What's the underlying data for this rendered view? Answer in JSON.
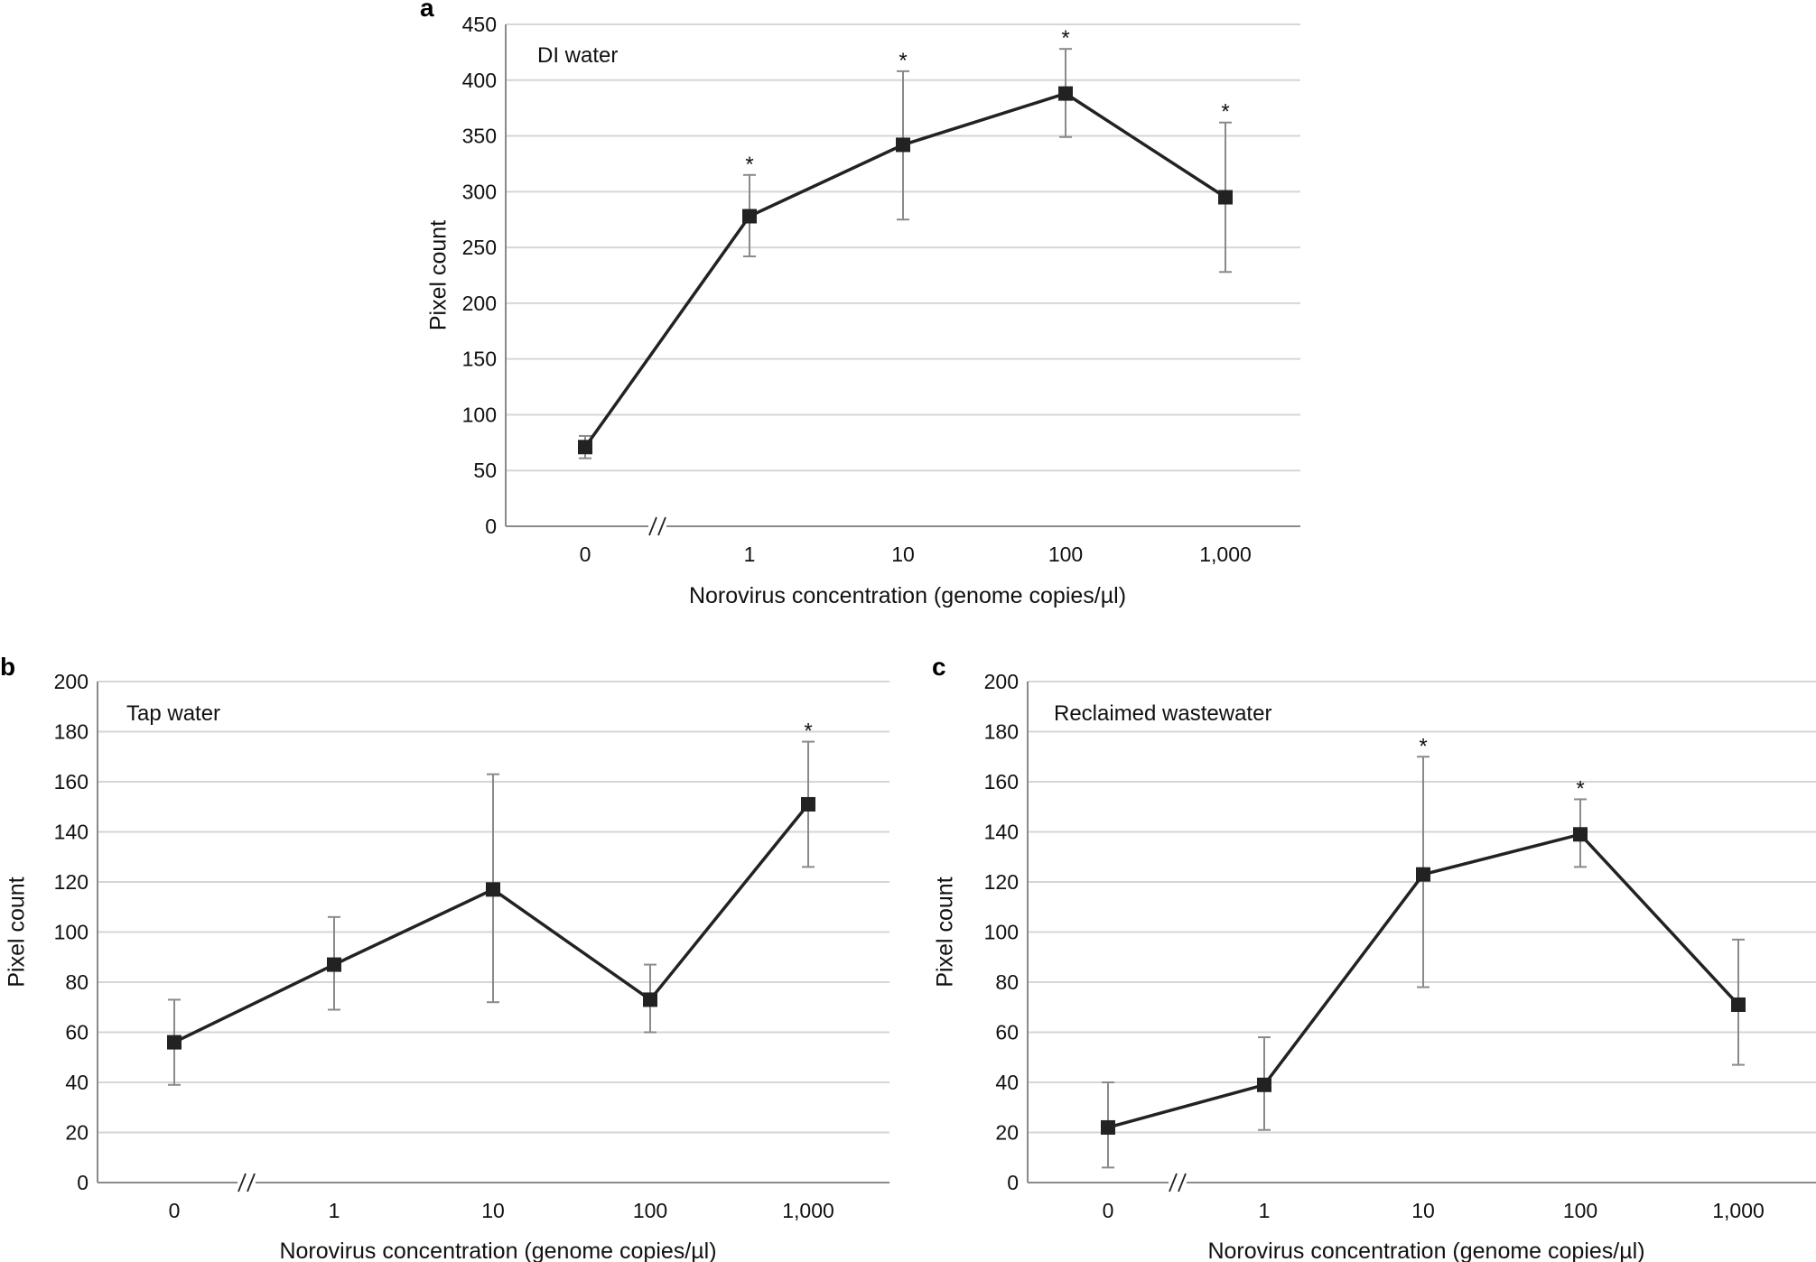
{
  "chart_data": [
    {
      "panel": "a",
      "type": "line",
      "inset_label": "DI water",
      "xlabel": "Norovirus concentration (genome copies/µl)",
      "ylabel": "Pixel count",
      "categories": [
        "0",
        "1",
        "10",
        "100",
        "1,000"
      ],
      "ylim": [
        0,
        450
      ],
      "yticks": [
        0,
        50,
        100,
        150,
        200,
        250,
        300,
        350,
        400,
        450
      ],
      "axis_break": "//",
      "series": [
        {
          "name": "DI water",
          "values": [
            71,
            278,
            342,
            388,
            295
          ],
          "err_low": [
            61,
            242,
            275,
            349,
            228
          ],
          "err_high": [
            81,
            315,
            408,
            428,
            362
          ],
          "significant": [
            false,
            true,
            true,
            true,
            true
          ]
        }
      ],
      "significance_marker": "*"
    },
    {
      "panel": "b",
      "type": "line",
      "inset_label": "Tap water",
      "xlabel": "Norovirus concentration (genome copies/µl)",
      "ylabel": "Pixel count",
      "categories": [
        "0",
        "1",
        "10",
        "100",
        "1,000"
      ],
      "ylim": [
        0,
        200
      ],
      "yticks": [
        0,
        20,
        40,
        60,
        80,
        100,
        120,
        140,
        160,
        180,
        200
      ],
      "axis_break": "//",
      "series": [
        {
          "name": "Tap water",
          "values": [
            56,
            87,
            117,
            73,
            151
          ],
          "err_low": [
            39,
            69,
            72,
            60,
            126
          ],
          "err_high": [
            73,
            106,
            163,
            87,
            176
          ],
          "significant": [
            false,
            false,
            false,
            false,
            true
          ]
        }
      ],
      "significance_marker": "*"
    },
    {
      "panel": "c",
      "type": "line",
      "inset_label": "Reclaimed wastewater",
      "xlabel": "Norovirus concentration (genome copies/µl)",
      "ylabel": "Pixel count",
      "categories": [
        "0",
        "1",
        "10",
        "100",
        "1,000"
      ],
      "ylim": [
        0,
        200
      ],
      "yticks": [
        0,
        20,
        40,
        60,
        80,
        100,
        120,
        140,
        160,
        180,
        200
      ],
      "axis_break": "//",
      "series": [
        {
          "name": "Reclaimed wastewater",
          "values": [
            22,
            39,
            123,
            139,
            71
          ],
          "err_low": [
            6,
            21,
            78,
            126,
            47
          ],
          "err_high": [
            40,
            58,
            170,
            153,
            97
          ],
          "significant": [
            false,
            false,
            true,
            true,
            false
          ]
        }
      ],
      "significance_marker": "*"
    }
  ]
}
